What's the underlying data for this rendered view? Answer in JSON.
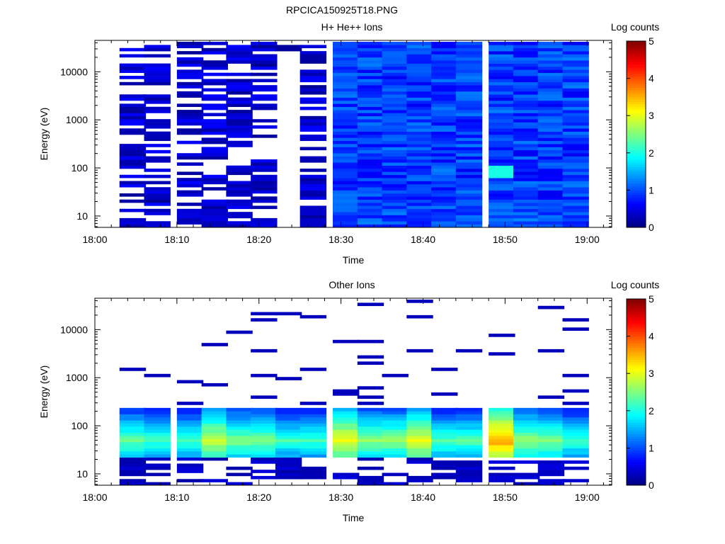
{
  "figure_title": "RPCICA150925T18.PNG",
  "colors": {
    "colormap": [
      "#00007f",
      "#0000ff",
      "#007fff",
      "#00ffff",
      "#7fff7f",
      "#ffff00",
      "#ff7f00",
      "#ff0000",
      "#7f0000"
    ],
    "axes": "#000000",
    "background": "#ffffff"
  },
  "chart_data": [
    {
      "type": "heatmap",
      "title": "H+ He++ Ions",
      "xlabel": "Time",
      "ylabel": "Energy (eV)",
      "x_ticks": [
        "18:00",
        "18:10",
        "18:20",
        "18:30",
        "18:40",
        "18:50",
        "19:00"
      ],
      "xlim": [
        "18:00",
        "19:03"
      ],
      "y_scale": "log",
      "y_ticks": [
        "10",
        "100",
        "1000",
        "10000"
      ],
      "ylim": [
        5.8,
        45000
      ],
      "colorbar": {
        "label": "Log counts",
        "ticks": [
          "0",
          "1",
          "2",
          "3",
          "4",
          "5"
        ],
        "range": [
          0,
          5
        ]
      },
      "column_starts": [
        "18:03",
        "18:06",
        "18:10",
        "18:13",
        "18:16",
        "18:19",
        "18:22",
        "18:25",
        "18:29",
        "18:32",
        "18:35",
        "18:38",
        "18:41",
        "18:44",
        "18:48",
        "18:51",
        "18:54",
        "18:57"
      ],
      "column_width_min": 3.2,
      "n_energy_bins": 60,
      "regime": [
        0,
        0,
        0,
        0,
        0,
        0,
        2,
        0,
        1,
        1,
        1,
        1,
        1,
        1,
        1,
        1,
        1,
        1
      ],
      "typical_log_counts": {
        "sparse_intervals": 0.3,
        "dense_intervals": 1.0
      },
      "peak": {
        "time": "18:50",
        "energy_eV": 90,
        "log_counts": 2.0
      }
    },
    {
      "type": "heatmap",
      "title": "Other Ions",
      "xlabel": "Time",
      "ylabel": "Energy (eV)",
      "x_ticks": [
        "18:00",
        "18:10",
        "18:20",
        "18:30",
        "18:40",
        "18:50",
        "19:00"
      ],
      "xlim": [
        "18:00",
        "19:03"
      ],
      "y_scale": "log",
      "y_ticks": [
        "10",
        "100",
        "1000",
        "10000"
      ],
      "ylim": [
        5.8,
        45000
      ],
      "colorbar": {
        "label": "Log counts",
        "ticks": [
          "0",
          "1",
          "2",
          "3",
          "4",
          "5"
        ],
        "range": [
          0,
          5
        ]
      },
      "column_starts": [
        "18:03",
        "18:06",
        "18:10",
        "18:13",
        "18:16",
        "18:19",
        "18:22",
        "18:25",
        "18:29",
        "18:32",
        "18:35",
        "18:38",
        "18:41",
        "18:44",
        "18:48",
        "18:51",
        "18:54",
        "18:57"
      ],
      "column_width_min": 3.2,
      "core_band_eV": [
        22,
        250
      ],
      "core_peak_eV": 50,
      "core_peak_log_counts": [
        2.4,
        2.2,
        2.2,
        2.9,
        2.5,
        2.5,
        2.2,
        2.2,
        3.1,
        2.6,
        2.6,
        3.0,
        2.3,
        2.3,
        3.6,
        2.6,
        2.5,
        2.2
      ],
      "sparse_high_energy_log_counts": 0.3,
      "peak": {
        "time": "18:50",
        "energy_eV": 55,
        "log_counts": 3.6
      }
    }
  ]
}
